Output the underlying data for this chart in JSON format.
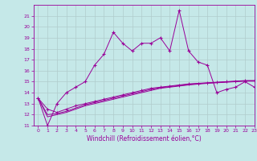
{
  "xlabel": "Windchill (Refroidissement éolien,°C)",
  "background_color": "#c5e8e8",
  "grid_color": "#b0cccc",
  "line_color": "#990099",
  "x": [
    0,
    1,
    2,
    3,
    4,
    5,
    6,
    7,
    8,
    9,
    10,
    11,
    12,
    13,
    14,
    15,
    16,
    17,
    18,
    19,
    20,
    21,
    22,
    23
  ],
  "y_main": [
    13.5,
    11.0,
    13.0,
    14.0,
    14.5,
    15.0,
    16.5,
    17.5,
    19.5,
    18.5,
    17.8,
    18.5,
    18.5,
    19.0,
    17.8,
    21.5,
    17.8,
    16.8,
    16.5,
    14.0,
    14.3,
    14.5,
    15.0,
    14.5
  ],
  "y_low1": [
    13.5,
    12.5,
    12.2,
    12.5,
    12.8,
    13.0,
    13.2,
    13.4,
    13.6,
    13.8,
    14.0,
    14.2,
    14.4,
    14.5,
    14.6,
    14.7,
    14.8,
    14.85,
    14.9,
    14.95,
    15.0,
    15.05,
    15.1,
    15.1
  ],
  "y_low2": [
    13.5,
    12.0,
    12.1,
    12.3,
    12.6,
    12.9,
    13.1,
    13.3,
    13.5,
    13.7,
    13.9,
    14.1,
    14.3,
    14.45,
    14.55,
    14.65,
    14.75,
    14.82,
    14.88,
    14.93,
    14.98,
    15.03,
    15.08,
    15.08
  ],
  "y_low3": [
    13.5,
    11.8,
    12.0,
    12.2,
    12.5,
    12.8,
    13.0,
    13.2,
    13.4,
    13.6,
    13.8,
    14.0,
    14.2,
    14.4,
    14.5,
    14.6,
    14.7,
    14.78,
    14.85,
    14.9,
    14.95,
    15.0,
    15.05,
    15.05
  ],
  "ylim": [
    11,
    22
  ],
  "xlim": [
    -0.5,
    23
  ],
  "yticks": [
    11,
    12,
    13,
    14,
    15,
    16,
    17,
    18,
    19,
    20,
    21
  ],
  "xticks": [
    0,
    1,
    2,
    3,
    4,
    5,
    6,
    7,
    8,
    9,
    10,
    11,
    12,
    13,
    14,
    15,
    16,
    17,
    18,
    19,
    20,
    21,
    22,
    23
  ],
  "ylabel_fontsize": 5,
  "xlabel_fontsize": 5.5,
  "tick_fontsize": 4.5
}
